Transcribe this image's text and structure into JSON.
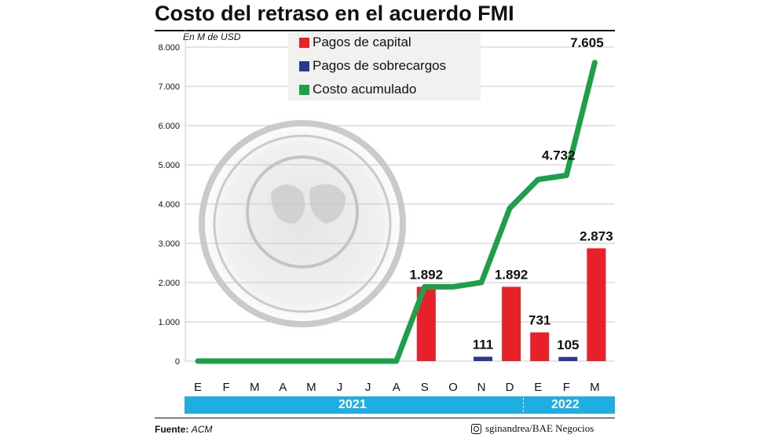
{
  "title": "Costo del retraso en el acuerdo FMI",
  "unit_label": "En M de USD",
  "legend": [
    {
      "label": "Pagos de capital",
      "color": "#e8202a"
    },
    {
      "label": "Pagos de sobrecargos",
      "color": "#2b3990"
    },
    {
      "label": "Costo acumulado",
      "color": "#1ea04a"
    }
  ],
  "years": [
    "2021",
    "2022"
  ],
  "footer": {
    "source_label": "Fuente:",
    "source_value": "ACM",
    "credit": "sginandrea/BAE Negocios"
  },
  "chart_data": {
    "type": "bar",
    "categories": [
      "E",
      "F",
      "M",
      "A",
      "M",
      "J",
      "J",
      "A",
      "S",
      "O",
      "N",
      "D",
      "E",
      "F",
      "M"
    ],
    "y_ticks": [
      "0",
      "1.000",
      "2.000",
      "3.000",
      "4.000",
      "5.000",
      "6.000",
      "7.000",
      "8.000"
    ],
    "ylim": [
      0,
      8000
    ],
    "grid": true,
    "series": [
      {
        "name": "Pagos de capital",
        "type": "bar",
        "color": "#e8202a",
        "values": [
          0,
          0,
          0,
          0,
          0,
          0,
          0,
          0,
          1892,
          0,
          0,
          1892,
          731,
          0,
          2873
        ],
        "labels": [
          null,
          null,
          null,
          null,
          null,
          null,
          null,
          null,
          "1.892",
          null,
          null,
          "1.892",
          "731",
          null,
          "2.873"
        ]
      },
      {
        "name": "Pagos de sobrecargos",
        "type": "bar",
        "color": "#2b3990",
        "values": [
          0,
          0,
          0,
          0,
          0,
          0,
          0,
          0,
          0,
          0,
          111,
          0,
          0,
          105,
          0
        ],
        "labels": [
          null,
          null,
          null,
          null,
          null,
          null,
          null,
          null,
          null,
          null,
          "111",
          null,
          null,
          "105",
          null
        ]
      },
      {
        "name": "Costo acumulado",
        "type": "line",
        "color": "#1ea04a",
        "values": [
          0,
          0,
          0,
          0,
          0,
          0,
          0,
          0,
          1892,
          1892,
          2003,
          3895,
          4626,
          4732,
          7605
        ],
        "labels": [
          null,
          null,
          null,
          null,
          null,
          null,
          null,
          null,
          null,
          null,
          null,
          null,
          null,
          "4.732",
          "7.605"
        ]
      }
    ]
  }
}
